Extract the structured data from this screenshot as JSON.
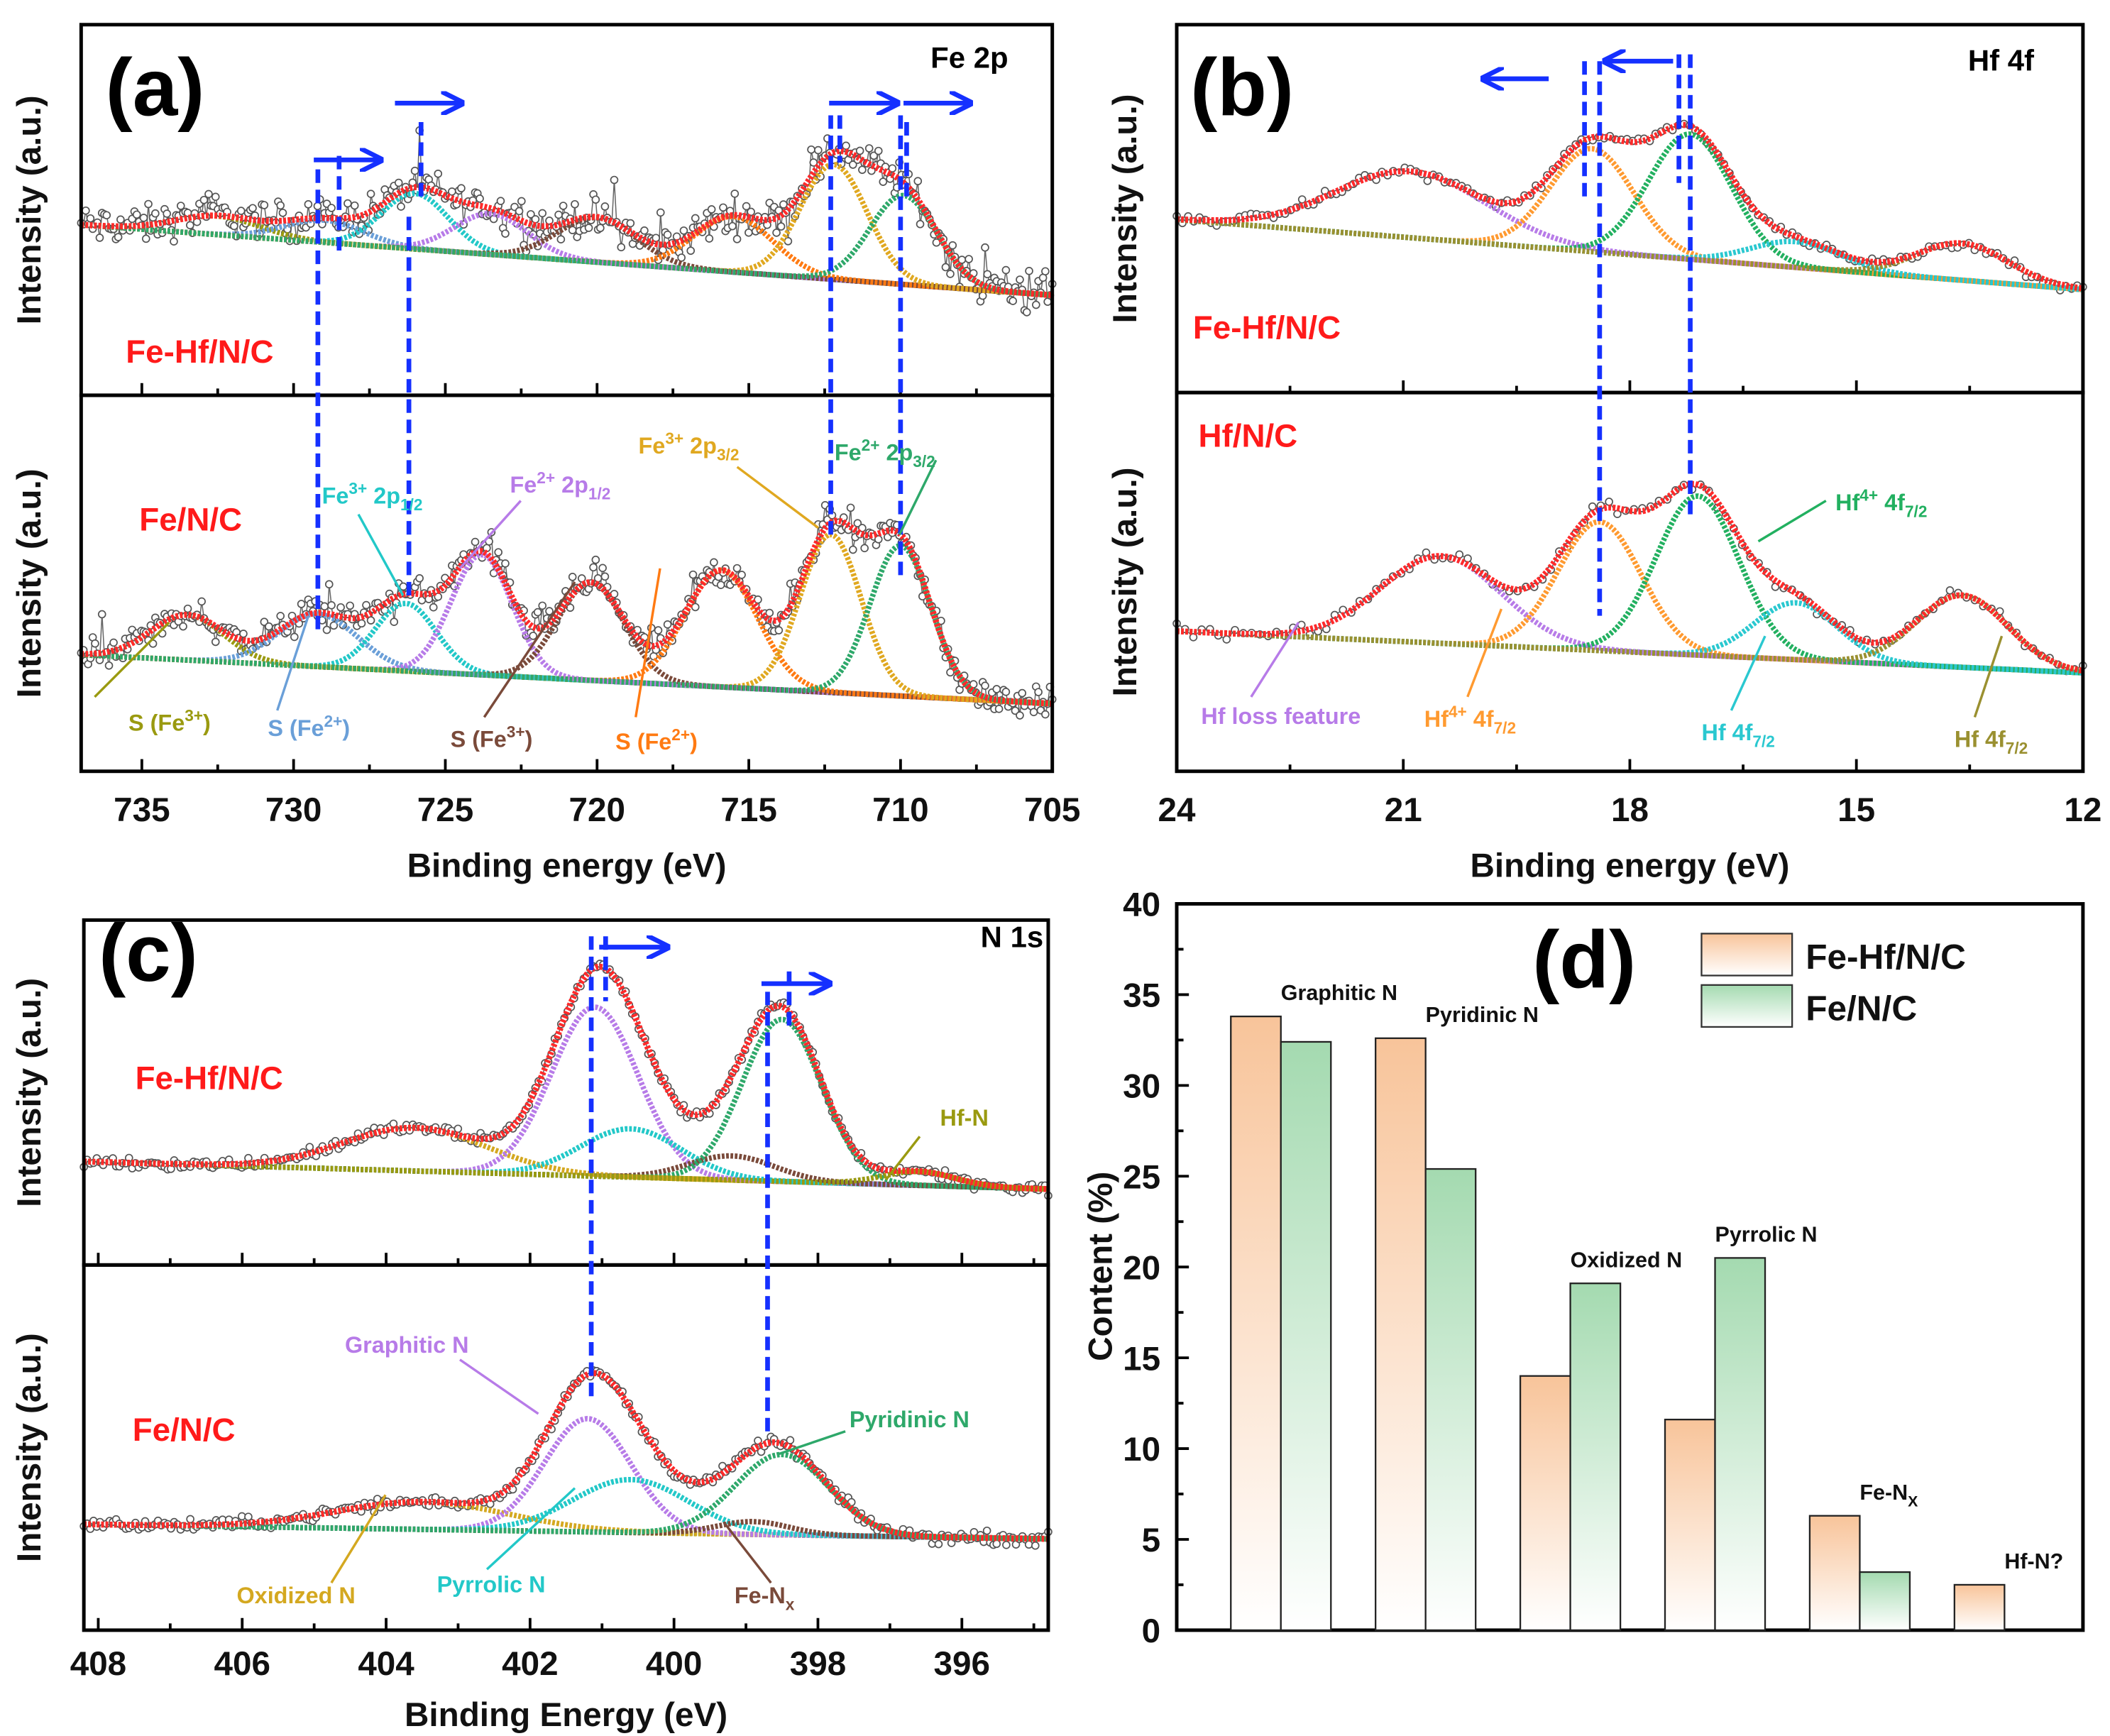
{
  "chart_data": [
    {
      "type": "line",
      "panel_label": "(a)",
      "title": "Fe 2p",
      "xlabel": "Binding energy (eV)",
      "ylabel": "Intensity (a.u.)",
      "xlim": [
        737,
        705
      ],
      "xticks": [
        735,
        730,
        725,
        720,
        715,
        710,
        705
      ],
      "minor_step": 2.5,
      "envelope_color": "#ff2a2a",
      "baseline_color": "#9a9a10",
      "marker_color": "#1530ff",
      "subplots": [
        {
          "sample": "Fe-Hf/N/C",
          "baseline": [
            0.46,
            0.27
          ],
          "noise": 0.075,
          "points": 420,
          "peaks": [
            {
              "center": 732.5,
              "height": 0.05,
              "sigma": 1.4,
              "color": "#9a9a10"
            },
            {
              "center": 729.0,
              "height": 0.06,
              "sigma": 1.3,
              "color": "#6a9fd8"
            },
            {
              "center": 726.0,
              "height": 0.15,
              "sigma": 1.1,
              "color": "#22c8c8"
            },
            {
              "center": 723.5,
              "height": 0.11,
              "sigma": 1.2,
              "color": "#b77be8"
            },
            {
              "center": 720.0,
              "height": 0.12,
              "sigma": 1.3,
              "color": "#7a4a3a"
            },
            {
              "center": 715.5,
              "height": 0.15,
              "sigma": 1.3,
              "color": "#ff7a12"
            },
            {
              "center": 712.2,
              "height": 0.31,
              "sigma": 1.1,
              "color": "#e0a820"
            },
            {
              "center": 709.9,
              "height": 0.24,
              "sigma": 1.1,
              "color": "#2ea86a"
            }
          ]
        },
        {
          "sample": "Fe/N/C",
          "baseline": [
            0.31,
            0.18
          ],
          "noise": 0.06,
          "points": 420,
          "peaks": [
            {
              "center": 733.5,
              "height": 0.12,
              "sigma": 1.2,
              "color": "#9a9a10"
            },
            {
              "center": 729.2,
              "height": 0.14,
              "sigma": 1.3,
              "color": "#6a9fd8"
            },
            {
              "center": 726.3,
              "height": 0.18,
              "sigma": 1.0,
              "color": "#22c8c8"
            },
            {
              "center": 723.8,
              "height": 0.32,
              "sigma": 1.0,
              "color": "#b77be8"
            },
            {
              "center": 720.2,
              "height": 0.26,
              "sigma": 1.1,
              "color": "#7a4a3a"
            },
            {
              "center": 715.9,
              "height": 0.31,
              "sigma": 1.2,
              "color": "#ff7a12"
            },
            {
              "center": 712.3,
              "height": 0.42,
              "sigma": 1.0,
              "color": "#e0a820"
            },
            {
              "center": 710.0,
              "height": 0.4,
              "sigma": 1.0,
              "color": "#2ea86a"
            }
          ]
        }
      ],
      "markers": [
        729.2,
        728.5,
        726.2,
        725.8,
        712.3,
        712.0,
        710.0,
        709.8
      ],
      "shift_arrows": "right",
      "peak_labels": [
        {
          "base": "S (Fe",
          "sup": "3+",
          "mid": ")",
          "color": "#9a9a10"
        },
        {
          "base": "S (Fe",
          "sup": "2+",
          "mid": ")",
          "color": "#6a9fd8"
        },
        {
          "base": "S (Fe",
          "sup": "3+",
          "mid": ")",
          "color": "#7a4a3a"
        },
        {
          "base": "S (Fe",
          "sup": "2+",
          "mid": ")",
          "color": "#ff7a12"
        },
        {
          "base": "Fe",
          "sup": "3+",
          "mid": " 2p",
          "sub": "1/2",
          "color": "#22c8c8"
        },
        {
          "base": "Fe",
          "sup": "2+",
          "mid": " 2p",
          "sub": "1/2",
          "color": "#b77be8"
        },
        {
          "base": "Fe",
          "sup": "3+",
          "mid": " 2p",
          "sub": "3/2",
          "color": "#e0a820"
        },
        {
          "base": "Fe",
          "sup": "2+",
          "mid": " 2p",
          "sub": "3/2",
          "color": "#2ea86a"
        }
      ]
    },
    {
      "type": "line",
      "panel_label": "(b)",
      "title": "Hf 4f",
      "xlabel": "Binding energy (eV)",
      "ylabel": "Intensity (a.u.)",
      "xlim": [
        24,
        12
      ],
      "xticks": [
        24,
        21,
        18,
        15,
        12
      ],
      "minor_step": 1.5,
      "envelope_color": "#ff2a2a",
      "baseline_color": "#ff9a30",
      "marker_color": "#1530ff",
      "subplots": [
        {
          "sample": "Fe-Hf/N/C",
          "baseline": [
            0.47,
            0.28
          ],
          "noise": 0.02,
          "points": 160,
          "peaks": [
            {
              "center": 20.9,
              "height": 0.18,
              "sigma": 1.0,
              "color": "#b77be8"
            },
            {
              "center": 18.5,
              "height": 0.28,
              "sigma": 0.55,
              "color": "#ff9a30"
            },
            {
              "center": 17.2,
              "height": 0.34,
              "sigma": 0.55,
              "color": "#22b060"
            },
            {
              "center": 15.8,
              "height": 0.07,
              "sigma": 0.6,
              "color": "#2ac8d0"
            },
            {
              "center": 13.6,
              "height": 0.1,
              "sigma": 0.6,
              "color": "#9a9030"
            }
          ]
        },
        {
          "sample": "Hf/N/C",
          "baseline": [
            0.37,
            0.26
          ],
          "noise": 0.025,
          "points": 110,
          "peaks": [
            {
              "center": 20.5,
              "height": 0.23,
              "sigma": 0.8,
              "color": "#b77be8"
            },
            {
              "center": 18.4,
              "height": 0.34,
              "sigma": 0.55,
              "color": "#ff9a30"
            },
            {
              "center": 17.1,
              "height": 0.42,
              "sigma": 0.55,
              "color": "#22b060"
            },
            {
              "center": 15.8,
              "height": 0.15,
              "sigma": 0.55,
              "color": "#2ac8d0"
            },
            {
              "center": 13.6,
              "height": 0.19,
              "sigma": 0.6,
              "color": "#9a9030"
            }
          ]
        }
      ],
      "markers": [
        18.6,
        18.4,
        17.35,
        17.2
      ],
      "shift_arrows": "left",
      "peak_labels": [
        {
          "base": "Hf loss feature",
          "color": "#b77be8"
        },
        {
          "base": "Hf",
          "sup": "4+",
          "mid": " 4f",
          "sub": "7/2",
          "color": "#ff9a30"
        },
        {
          "base": "Hf",
          "sup": "4+",
          "mid": " 4f",
          "sub": "7/2",
          "color": "#22b060"
        },
        {
          "base": "Hf 4f",
          "sub": "7/2",
          "color": "#2ac8d0"
        },
        {
          "base": "Hf 4f",
          "sub": "7/2",
          "color": "#9a9030"
        }
      ]
    },
    {
      "type": "line",
      "panel_label": "(c)",
      "title": "N 1s",
      "xlabel": "Binding Energy (eV)",
      "ylabel": "Intensity (a.u.)",
      "xlim": [
        408.2,
        394.8
      ],
      "xticks": [
        408,
        406,
        404,
        402,
        400,
        398,
        396
      ],
      "minor_step": 1,
      "envelope_color": "#ff2a2a",
      "baseline_color": "#9a9a10",
      "marker_color": "#1530ff",
      "subplots": [
        {
          "sample": "Fe-Hf/N/C",
          "baseline": [
            0.3,
            0.22
          ],
          "noise": 0.025,
          "points": 300,
          "peaks": [
            {
              "center": 403.6,
              "height": 0.125,
              "sigma": 1.0,
              "color": "#d4a820"
            },
            {
              "center": 401.1,
              "height": 0.49,
              "sigma": 0.6,
              "color": "#b77be8"
            },
            {
              "center": 400.6,
              "height": 0.14,
              "sigma": 0.7,
              "color": "#22c8c8"
            },
            {
              "center": 399.2,
              "height": 0.07,
              "sigma": 0.6,
              "color": "#7a4a3a"
            },
            {
              "center": 398.5,
              "height": 0.47,
              "sigma": 0.55,
              "color": "#2ea86a"
            },
            {
              "center": 396.6,
              "height": 0.04,
              "sigma": 0.5,
              "color": "#9a9a10"
            }
          ]
        },
        {
          "sample": "Fe/N/C",
          "baseline": [
            0.29,
            0.25
          ],
          "noise": 0.025,
          "points": 300,
          "peaks": [
            {
              "center": 403.5,
              "height": 0.075,
              "sigma": 1.2,
              "color": "#d4a820"
            },
            {
              "center": 401.2,
              "height": 0.31,
              "sigma": 0.6,
              "color": "#b77be8"
            },
            {
              "center": 400.6,
              "height": 0.145,
              "sigma": 0.8,
              "color": "#22c8c8"
            },
            {
              "center": 398.9,
              "height": 0.035,
              "sigma": 0.5,
              "color": "#7a4a3a"
            },
            {
              "center": 398.5,
              "height": 0.22,
              "sigma": 0.65,
              "color": "#2ea86a"
            }
          ]
        }
      ],
      "markers": [
        401.15,
        400.95,
        398.7,
        398.4
      ],
      "shift_arrows": "right",
      "peak_labels": [
        {
          "base": "Hf-N",
          "color": "#9a9a10"
        },
        {
          "base": "Graphitic N",
          "color": "#b77be8"
        },
        {
          "base": "Pyridinic N",
          "color": "#2ea86a"
        },
        {
          "base": "Oxidized N",
          "color": "#d4a820"
        },
        {
          "base": "Pyrrolic N",
          "color": "#22c8c8"
        },
        {
          "base": "Fe-N",
          "sub": "x",
          "color": "#7a4a3a"
        }
      ]
    },
    {
      "type": "bar",
      "panel_label": "(d)",
      "xlabel": "",
      "ylabel": "Content (%)",
      "ylim": [
        0,
        40
      ],
      "yticks": [
        0,
        5,
        10,
        15,
        20,
        25,
        30,
        35,
        40
      ],
      "categories": [
        {
          "base": "Graphitic N"
        },
        {
          "base": "Pyridinic N"
        },
        {
          "base": "Oxidized N"
        },
        {
          "base": "Pyrrolic N"
        },
        {
          "base": "Fe-N",
          "sub": "X"
        },
        {
          "base": "Hf-N?"
        }
      ],
      "series": [
        {
          "name": "Fe-Hf/N/C",
          "color": "#f8c49a",
          "values": [
            33.8,
            32.6,
            14.0,
            11.6,
            6.3,
            2.5
          ]
        },
        {
          "name": "Fe/N/C",
          "color": "#a4dab0",
          "values": [
            32.4,
            25.4,
            19.1,
            20.5,
            3.2,
            null
          ]
        }
      ],
      "legend_position": "top-right"
    }
  ]
}
